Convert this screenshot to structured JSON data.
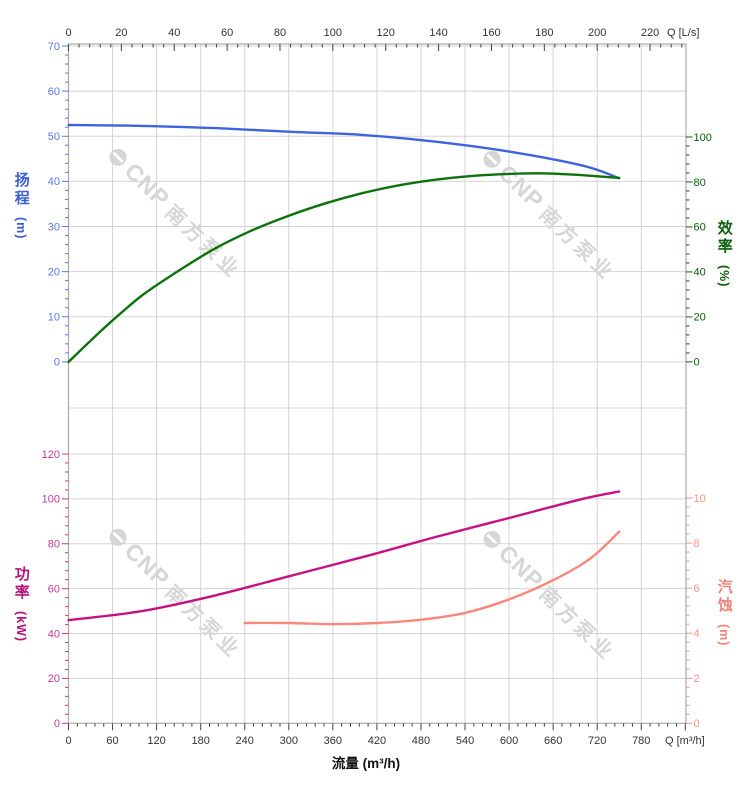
{
  "watermark": {
    "brand": "CNP",
    "name": "南方泵业",
    "color": "#d6d6d6"
  },
  "style": {
    "grid_color": "#d4d4d4",
    "border_color": "#aaaaaa",
    "x_tick_color": "#444444",
    "x_label_color": "#333333"
  },
  "chart_data": [
    {
      "type": "line",
      "id": "head-efficiency",
      "x_axis": {
        "label": "Q [L/s]",
        "min": 0,
        "max": 220,
        "major_step": 20,
        "minor_step": 4,
        "tick_labels": [
          0,
          20,
          40,
          60,
          80,
          100,
          120,
          140,
          160,
          180,
          200,
          220
        ]
      },
      "left_axis": {
        "title": "扬程",
        "unit": "(m)",
        "min": 0,
        "max": 70,
        "major_step": 10,
        "minor_step": 2,
        "tick_labels": [
          70,
          60,
          50,
          40,
          30,
          20,
          10,
          0
        ],
        "color": "#5b79de",
        "title_color": "#3d5ed2"
      },
      "right_axis": {
        "title": "效率",
        "unit": "(%)",
        "min": 0,
        "max": 100,
        "major_step": 20,
        "minor_step": 4,
        "tick_labels": [
          100,
          80,
          60,
          40,
          20,
          0
        ],
        "color": "#0c600c",
        "title_color": "#0c600c"
      },
      "series": [
        {
          "name": "head",
          "scale": "head",
          "color": "#3f63dd",
          "x_unit": "m3/h",
          "points": [
            [
              0,
              52.5
            ],
            [
              100,
              52.3
            ],
            [
              200,
              51.8
            ],
            [
              300,
              51.0
            ],
            [
              400,
              50.3
            ],
            [
              500,
              48.8
            ],
            [
              600,
              46.6
            ],
            [
              700,
              43.5
            ],
            [
              750,
              40.7
            ]
          ]
        },
        {
          "name": "efficiency",
          "scale": "efficiency",
          "color": "#0d720d",
          "x_unit": "m3/h",
          "points": [
            [
              0,
              0
            ],
            [
              50,
              15.5
            ],
            [
              100,
              29.5
            ],
            [
              150,
              40.5
            ],
            [
              200,
              50.5
            ],
            [
              250,
              58.5
            ],
            [
              300,
              65.0
            ],
            [
              350,
              70.5
            ],
            [
              400,
              75.0
            ],
            [
              450,
              78.5
            ],
            [
              500,
              81.0
            ],
            [
              550,
              82.7
            ],
            [
              600,
              83.6
            ],
            [
              650,
              83.8
            ],
            [
              700,
              83.0
            ],
            [
              750,
              81.8
            ]
          ]
        }
      ]
    },
    {
      "type": "line",
      "id": "power-npsh",
      "x_axis": {
        "label": "Q [m³/h]",
        "title": "流量 (m³/h)",
        "min": 0,
        "max": 780,
        "major_step": 60,
        "minor_step": 12,
        "tick_labels": [
          0,
          60,
          120,
          180,
          240,
          300,
          360,
          420,
          480,
          540,
          600,
          660,
          720,
          780
        ]
      },
      "left_axis": {
        "title": "功率",
        "unit": "(kW)",
        "min": 0,
        "max": 120,
        "major_step": 20,
        "minor_step": 4,
        "tick_labels": [
          120,
          100,
          80,
          60,
          40,
          20,
          0
        ],
        "color": "#c5379b",
        "title_color": "#b5127e"
      },
      "right_axis": {
        "title": "汽蚀",
        "unit": "(m)",
        "min": 0,
        "max": 10,
        "major_step": 2,
        "minor_step": 0.4,
        "tick_labels": [
          10,
          8,
          6,
          4,
          2,
          0
        ],
        "color": "#f5928b",
        "title_color": "#ef837c"
      },
      "series": [
        {
          "name": "power",
          "scale": "power",
          "color": "#c61183",
          "x_unit": "m3/h",
          "points": [
            [
              0,
              46
            ],
            [
              100,
              50
            ],
            [
              200,
              57
            ],
            [
              300,
              65.5
            ],
            [
              400,
              74
            ],
            [
              500,
              83
            ],
            [
              600,
              91.5
            ],
            [
              700,
              100
            ],
            [
              750,
              103.3
            ]
          ]
        },
        {
          "name": "npsh",
          "scale": "npsh",
          "color": "#f8877c",
          "x_unit": "m3/h",
          "points": [
            [
              240,
              4.45
            ],
            [
              300,
              4.45
            ],
            [
              360,
              4.4
            ],
            [
              420,
              4.45
            ],
            [
              480,
              4.6
            ],
            [
              540,
              4.9
            ],
            [
              600,
              5.5
            ],
            [
              660,
              6.35
            ],
            [
              710,
              7.3
            ],
            [
              750,
              8.5
            ]
          ]
        }
      ]
    }
  ]
}
